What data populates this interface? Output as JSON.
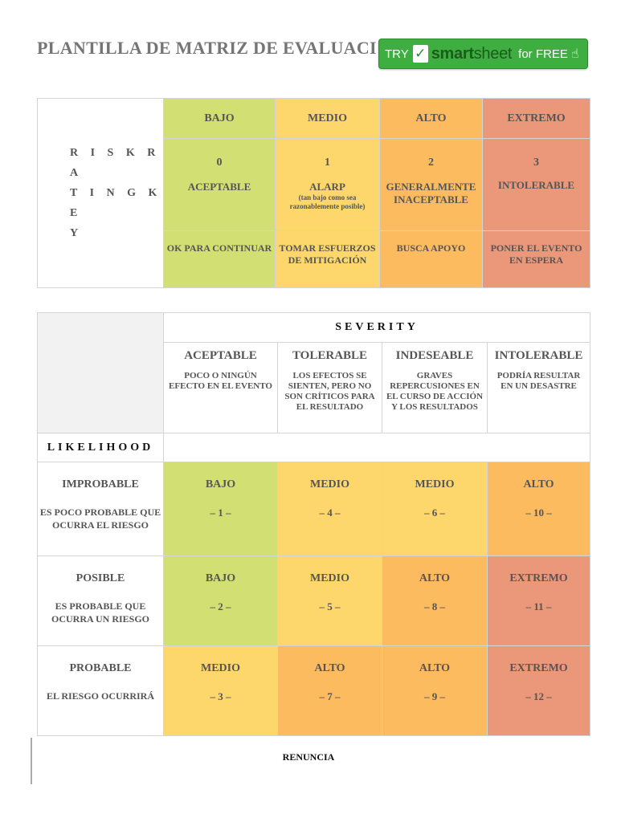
{
  "title": "PLANTILLA DE MATRIZ DE EVALUACI",
  "banner": {
    "try": "TRY",
    "brand_a": "smart",
    "brand_b": "sheet",
    "free": "for FREE",
    "check_icon": "check-icon",
    "cursor_icon": "hand-cursor-icon"
  },
  "colors": {
    "bajo": "#d2df72",
    "medio": "#fdd76b",
    "alto": "#fdbb5f",
    "extremo": "#eb9779"
  },
  "key": {
    "label": "RISKRATINGKEY",
    "label_lines": [
      "R I S K R A",
      "T I N G K E",
      "Y"
    ],
    "levels": [
      {
        "name": "BAJO",
        "num": "0",
        "desc": "ACEPTABLE",
        "sub": "",
        "action": "OK PARA CONTINUAR"
      },
      {
        "name": "MEDIO",
        "num": "1",
        "desc": "ALARP",
        "sub": "(tan bajo como sea razonablemente posible)",
        "action": "TOMAR ESFUERZOS DE MITIGACIÓN"
      },
      {
        "name": "ALTO",
        "num": "2",
        "desc": "GENERALMENTE INACEPTABLE",
        "sub": "",
        "action": "BUSCA APOYO"
      },
      {
        "name": "EXTREMO",
        "num": "3",
        "desc": "INTOLERABLE",
        "sub": "",
        "action": "PONER EL EVENTO EN ESPERA"
      }
    ]
  },
  "matrix": {
    "severity_label": "SEVERITY",
    "likelihood_label": "LIKELIHOOD",
    "severity": [
      {
        "name": "ACEPTABLE",
        "desc": "POCO O NINGÚN EFECTO EN EL EVENTO"
      },
      {
        "name": "TOLERABLE",
        "desc": "LOS EFECTOS SE SIENTEN, PERO NO SON CRÍTICOS PARA EL RESULTADO"
      },
      {
        "name": "INDESEABLE",
        "desc": "GRAVES REPERCUSIONES EN EL CURSO DE ACCIÓN Y LOS RESULTADOS"
      },
      {
        "name": "INTOLERABLE",
        "desc": "PODRÍA RESULTAR EN UN DESASTRE"
      }
    ],
    "rows": [
      {
        "name": "IMPROBABLE",
        "desc": "ES POCO PROBABLE QUE OCURRA EL RIESGO",
        "cells": [
          {
            "level": "BAJO",
            "num": "– 1 –"
          },
          {
            "level": "MEDIO",
            "num": "– 4 –"
          },
          {
            "level": "MEDIO",
            "num": "– 6 –"
          },
          {
            "level": "ALTO",
            "num": "– 10 –"
          }
        ]
      },
      {
        "name": "POSIBLE",
        "desc": "ES PROBABLE QUE OCURRA UN RIESGO",
        "cells": [
          {
            "level": "BAJO",
            "num": "– 2 –"
          },
          {
            "level": "MEDIO",
            "num": "– 5 –"
          },
          {
            "level": "ALTO",
            "num": "– 8 –"
          },
          {
            "level": "EXTREMO",
            "num": "– 11 –"
          }
        ]
      },
      {
        "name": "PROBABLE",
        "desc": "EL RIESGO OCURRIRÁ",
        "cells": [
          {
            "level": "MEDIO",
            "num": "– 3 –"
          },
          {
            "level": "ALTO",
            "num": "– 7 –"
          },
          {
            "level": "ALTO",
            "num": "– 9 –"
          },
          {
            "level": "EXTREMO",
            "num": "– 12 –"
          }
        ]
      }
    ]
  },
  "footer": {
    "renuncia": "RENUNCIA"
  }
}
